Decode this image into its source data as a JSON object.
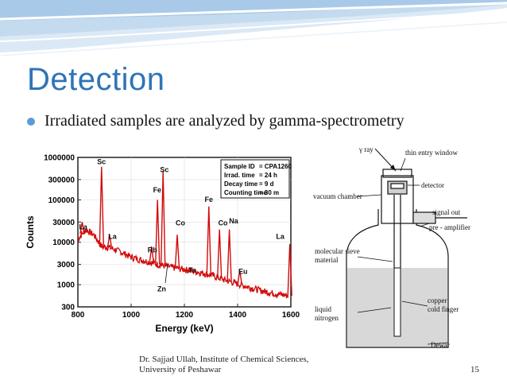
{
  "slide": {
    "title": "Detection",
    "bullet": "Irradiated samples are analyzed by gamma-spectrometry",
    "footer": {
      "line1": "Dr. Sajjad Ullah, Institute of Chemical Sciences,",
      "line2": "University of Peshawar",
      "page": "15"
    },
    "colors": {
      "title": "#2e75b6",
      "bullet": "#5b9bd5",
      "spectrum": "#d10a0a"
    }
  },
  "chart_data": {
    "type": "line",
    "xlabel": "Energy (keV)",
    "ylabel": "Counts",
    "xlim": [
      800,
      1600
    ],
    "ylim": [
      300,
      1000000
    ],
    "yscale": "log",
    "grid": true,
    "xticks": [
      "800",
      "1000",
      "1200",
      "1400",
      "1600"
    ],
    "yticks": [
      {
        "label": "300",
        "value": 300
      },
      {
        "label": "1000",
        "value": 1000
      },
      {
        "label": "3000",
        "value": 3000
      },
      {
        "label": "10000",
        "value": 10000
      },
      {
        "label": "30000",
        "value": 30000
      },
      {
        "label": "100000",
        "value": 100000
      },
      {
        "label": "300000",
        "value": 300000
      },
      {
        "label": "1000000",
        "value": 1000000
      }
    ],
    "info_box": [
      {
        "key": "Sample ID",
        "value": "= CPA1260"
      },
      {
        "key": "Irrad. time",
        "value": "= 24 h"
      },
      {
        "key": "Decay time",
        "value": "= 9 d"
      },
      {
        "key": "Counting time",
        "value": "= 30 m"
      }
    ],
    "background": [
      [
        800,
        12000
      ],
      [
        830,
        20000
      ],
      [
        860,
        15000
      ],
      [
        889,
        8000
      ],
      [
        920,
        7500
      ],
      [
        960,
        6000
      ],
      [
        1000,
        4500
      ],
      [
        1040,
        3800
      ],
      [
        1080,
        3300
      ],
      [
        1100,
        3000
      ],
      [
        1150,
        2600
      ],
      [
        1200,
        2300
      ],
      [
        1250,
        2000
      ],
      [
        1300,
        1700
      ],
      [
        1350,
        1300
      ],
      [
        1400,
        1050
      ],
      [
        1450,
        850
      ],
      [
        1500,
        700
      ],
      [
        1550,
        600
      ],
      [
        1590,
        550
      ]
    ],
    "peaks": [
      {
        "label": "La",
        "energy": 816,
        "counts": 30000
      },
      {
        "label": "Sc",
        "energy": 889,
        "counts": 600000
      },
      {
        "label": "La",
        "energy": 919,
        "counts": 15000
      },
      {
        "label": "Rb",
        "energy": 1077,
        "counts": 8000
      },
      {
        "label": "Fe",
        "energy": 1099,
        "counts": 100000
      },
      {
        "label": "Sc",
        "energy": 1120,
        "counts": 480000
      },
      {
        "label": "Zn",
        "energy": 1115,
        "counts": 3000
      },
      {
        "label": "Co",
        "energy": 1173,
        "counts": 15000
      },
      {
        "label": "Ta",
        "energy": 1221,
        "counts": 2500
      },
      {
        "label": "Fe",
        "energy": 1292,
        "counts": 70000
      },
      {
        "label": "Co",
        "energy": 1332,
        "counts": 20000
      },
      {
        "label": "Na",
        "energy": 1369,
        "counts": 20000
      },
      {
        "label": "Eu",
        "energy": 1408,
        "counts": 2200
      },
      {
        "label": "La",
        "energy": 1596,
        "counts": 9000
      }
    ],
    "peak_labels": [
      {
        "text": "La",
        "energy": 820,
        "counts": 20000
      },
      {
        "text": "Sc",
        "energy": 889,
        "counts": 700000
      },
      {
        "text": "La",
        "energy": 930,
        "counts": 12000
      },
      {
        "text": "Rb",
        "energy": 1080,
        "counts": 5800
      },
      {
        "text": "Fe",
        "energy": 1098,
        "counts": 150000
      },
      {
        "text": "Sc",
        "energy": 1125,
        "counts": 450000
      },
      {
        "text": "Zn",
        "energy": 1115,
        "counts": 700
      },
      {
        "text": "Co",
        "energy": 1185,
        "counts": 25000
      },
      {
        "text": "Ta",
        "energy": 1230,
        "counts": 1900
      },
      {
        "text": "Fe",
        "energy": 1292,
        "counts": 90000
      },
      {
        "text": "Co",
        "energy": 1345,
        "counts": 25000
      },
      {
        "text": "Na",
        "energy": 1385,
        "counts": 28000
      },
      {
        "text": "Eu",
        "energy": 1420,
        "counts": 1800
      },
      {
        "text": "La",
        "energy": 1560,
        "counts": 12000
      }
    ]
  },
  "detector_diagram": {
    "labels": {
      "gamma_ray": "γ ray",
      "thin_entry_window": "thin entry window",
      "detector": "detector",
      "vacuum_chamber": "vacuum chamber",
      "signal_out": "signal out",
      "pre_amplifier": "pre - amplifier",
      "molecular_sieve_1": "molecular sieve",
      "molecular_sieve_2": "material",
      "liquid_1": "liquid",
      "liquid_2": "nitrogen",
      "copper_1": "copper",
      "copper_2": "cold finger",
      "dewar": "Dewar"
    }
  }
}
